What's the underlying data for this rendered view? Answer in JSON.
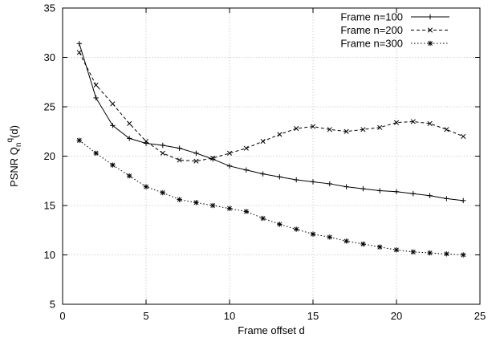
{
  "chart_data": {
    "type": "line",
    "xlabel": "Frame offset d",
    "ylabel": {
      "base": "PSNR Q",
      "sub": "n",
      "sup": "q",
      "suffix": "(d)"
    },
    "xlim": [
      0,
      25
    ],
    "ylim": [
      5,
      35
    ],
    "xticks": [
      0,
      5,
      10,
      15,
      20,
      25
    ],
    "yticks": [
      5,
      10,
      15,
      20,
      25,
      30,
      35
    ],
    "grid": true,
    "legend_position": "top-right",
    "x": [
      1,
      2,
      3,
      4,
      5,
      6,
      7,
      8,
      9,
      10,
      11,
      12,
      13,
      14,
      15,
      16,
      17,
      18,
      19,
      20,
      21,
      22,
      23,
      24
    ],
    "series": [
      {
        "name": "Frame n=100",
        "line": "solid",
        "marker": "plus",
        "values": [
          31.4,
          25.9,
          23.1,
          21.8,
          21.3,
          21.1,
          20.8,
          20.3,
          19.7,
          19.0,
          18.6,
          18.2,
          17.9,
          17.6,
          17.4,
          17.2,
          16.9,
          16.7,
          16.5,
          16.4,
          16.2,
          16.0,
          15.7,
          15.5
        ]
      },
      {
        "name": "Frame n=200",
        "line": "dashed",
        "marker": "cross",
        "values": [
          30.5,
          27.2,
          25.3,
          23.3,
          21.5,
          20.3,
          19.6,
          19.5,
          19.8,
          20.3,
          20.8,
          21.5,
          22.2,
          22.8,
          23.0,
          22.7,
          22.5,
          22.7,
          22.9,
          23.4,
          23.5,
          23.3,
          22.7,
          22.0
        ]
      },
      {
        "name": "Frame n=300",
        "line": "dotted",
        "marker": "star",
        "values": [
          21.6,
          20.3,
          19.1,
          18.0,
          16.9,
          16.3,
          15.6,
          15.3,
          15.0,
          14.7,
          14.4,
          13.7,
          13.1,
          12.6,
          12.1,
          11.8,
          11.4,
          11.1,
          10.8,
          10.5,
          10.3,
          10.2,
          10.1,
          10.0
        ]
      }
    ]
  }
}
